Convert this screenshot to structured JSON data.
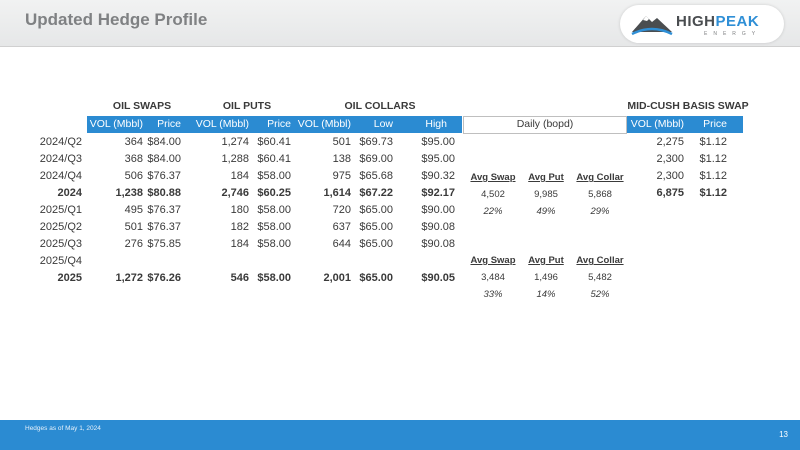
{
  "slide": {
    "title": "Updated Hedge Profile",
    "page_number": "13",
    "footnote": "Hedges as of May 1, 2024"
  },
  "logo": {
    "word_a": "HIGH",
    "word_b": "PEAK",
    "sub": "ENERGY"
  },
  "groups": {
    "oil_swaps": "OIL SWAPS",
    "oil_puts": "OIL PUTS",
    "oil_collars": "OIL COLLARS",
    "basis": "MID-CUSH BASIS SWAP"
  },
  "columns": {
    "swap_vol": "VOL (Mbbl)",
    "swap_price": "Price",
    "put_vol": "VOL (Mbbl)",
    "put_price": "Price",
    "collar_vol": "VOL (Mbbl)",
    "collar_low": "Low",
    "collar_high": "High",
    "daily": "Daily (bopd)",
    "basis_vol": "VOL (Mbbl)",
    "basis_price": "Price"
  },
  "rows": [
    {
      "period": "2024/Q2",
      "swap_vol": "364",
      "swap_price": "$84.00",
      "put_vol": "1,274",
      "put_price": "$60.41",
      "collar_vol": "501",
      "collar_low": "$69.73",
      "collar_high": "$95.00",
      "basis_vol": "2,275",
      "basis_price": "$1.12"
    },
    {
      "period": "2024/Q3",
      "swap_vol": "368",
      "swap_price": "$84.00",
      "put_vol": "1,288",
      "put_price": "$60.41",
      "collar_vol": "138",
      "collar_low": "$69.00",
      "collar_high": "$95.00",
      "basis_vol": "2,300",
      "basis_price": "$1.12"
    },
    {
      "period": "2024/Q4",
      "swap_vol": "506",
      "swap_price": "$76.37",
      "put_vol": "184",
      "put_price": "$58.00",
      "collar_vol": "975",
      "collar_low": "$65.68",
      "collar_high": "$90.32",
      "basis_vol": "2,300",
      "basis_price": "$1.12"
    },
    {
      "period": "2024",
      "swap_vol": "1,238",
      "swap_price": "$80.88",
      "put_vol": "2,746",
      "put_price": "$60.25",
      "collar_vol": "1,614",
      "collar_low": "$67.22",
      "collar_high": "$92.17",
      "basis_vol": "6,875",
      "basis_price": "$1.12"
    },
    {
      "period": "2025/Q1",
      "swap_vol": "495",
      "swap_price": "$76.37",
      "put_vol": "180",
      "put_price": "$58.00",
      "collar_vol": "720",
      "collar_low": "$65.00",
      "collar_high": "$90.00",
      "basis_vol": "",
      "basis_price": ""
    },
    {
      "period": "2025/Q2",
      "swap_vol": "501",
      "swap_price": "$76.37",
      "put_vol": "182",
      "put_price": "$58.00",
      "collar_vol": "637",
      "collar_low": "$65.00",
      "collar_high": "$90.08",
      "basis_vol": "",
      "basis_price": ""
    },
    {
      "period": "2025/Q3",
      "swap_vol": "276",
      "swap_price": "$75.85",
      "put_vol": "184",
      "put_price": "$58.00",
      "collar_vol": "644",
      "collar_low": "$65.00",
      "collar_high": "$90.08",
      "basis_vol": "",
      "basis_price": ""
    },
    {
      "period": "2025/Q4",
      "swap_vol": "",
      "swap_price": "",
      "put_vol": "",
      "put_price": "",
      "collar_vol": "",
      "collar_low": "",
      "collar_high": "",
      "basis_vol": "",
      "basis_price": ""
    },
    {
      "period": "2025",
      "swap_vol": "1,272",
      "swap_price": "$76.26",
      "put_vol": "546",
      "put_price": "$58.00",
      "collar_vol": "2,001",
      "collar_low": "$65.00",
      "collar_high": "$90.05",
      "basis_vol": "",
      "basis_price": ""
    }
  ],
  "daily_2024": {
    "h_swap": "Avg Swap",
    "h_put": "Avg Put",
    "h_collar": "Avg Collar",
    "swap": "4,502",
    "put": "9,985",
    "collar": "5,868",
    "swap_pct": "22%",
    "put_pct": "49%",
    "collar_pct": "29%"
  },
  "daily_2025": {
    "h_swap": "Avg Swap",
    "h_put": "Avg Put",
    "h_collar": "Avg Collar",
    "swap": "3,484",
    "put": "1,496",
    "collar": "5,482",
    "swap_pct": "33%",
    "put_pct": "14%",
    "collar_pct": "52%"
  },
  "colors": {
    "accent": "#2b8bd2",
    "title_gray": "#7f8183"
  }
}
